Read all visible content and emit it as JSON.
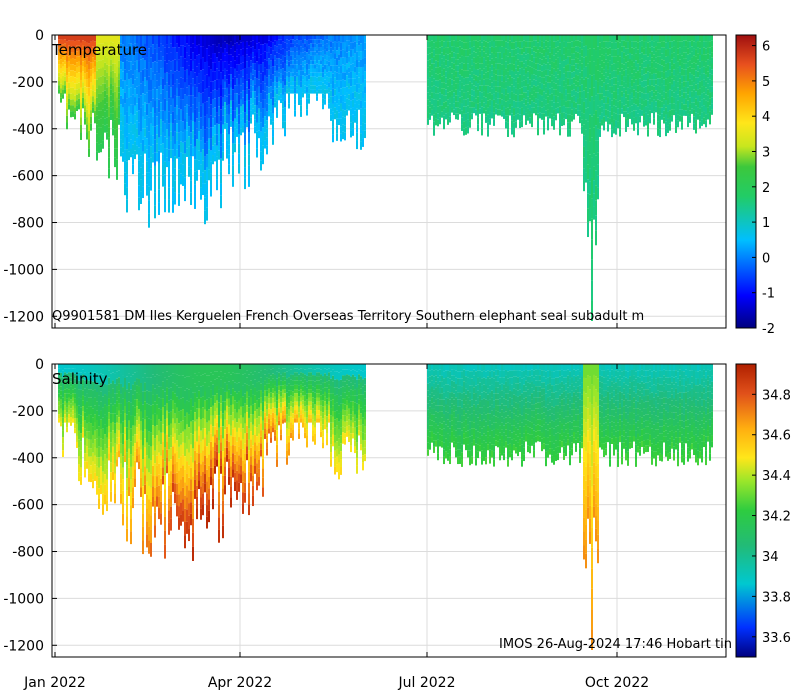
{
  "chart_data": [
    {
      "type": "heatmap",
      "title": "Temperature",
      "subtitle": "Q9901581 DM Iles Kerguelen French Overseas Territory Southern elephant seal subadult m",
      "x_ticks": [
        "Jan 2022",
        "Apr 2022",
        "Jul 2022",
        "Oct 2022"
      ],
      "y_ticks": [
        "0",
        "-200",
        "-400",
        "-600",
        "-800",
        "-1000",
        "-1200"
      ],
      "ylim": [
        -1250,
        0
      ],
      "colorbar_ticks": [
        "6",
        "5",
        "4",
        "3",
        "2",
        "1",
        "0",
        "-1",
        "-2"
      ],
      "colorbar_range": [
        -2,
        6.3
      ],
      "grid": true,
      "data_gap": [
        "2022-05-30",
        "2022-07-01"
      ]
    },
    {
      "type": "heatmap",
      "title": "Salinity",
      "annotation": "IMOS 26-Aug-2024 17:46 Hobart tin",
      "x_ticks": [
        "Jan 2022",
        "Apr 2022",
        "Jul 2022",
        "Oct 2022"
      ],
      "y_ticks": [
        "0",
        "-200",
        "-400",
        "-600",
        "-800",
        "-1000",
        "-1200"
      ],
      "ylim": [
        -1250,
        0
      ],
      "colorbar_ticks": [
        "34.8",
        "34.6",
        "34.4",
        "34.2",
        "34",
        "33.8",
        "33.6"
      ],
      "colorbar_range": [
        33.5,
        34.95
      ],
      "grid": true,
      "data_gap": [
        "2022-05-30",
        "2022-07-01"
      ]
    }
  ]
}
